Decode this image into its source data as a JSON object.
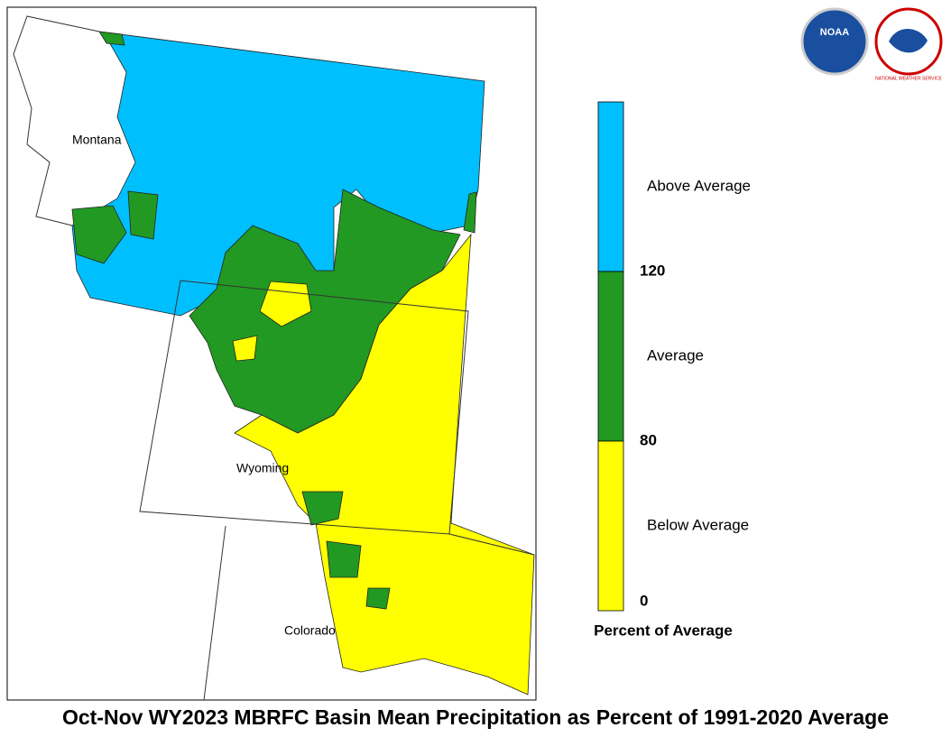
{
  "header": {
    "title": "Oct-Nov WY2023 MBRFC Basin Mean Precipitation as Percent of 1991-2020 Average"
  },
  "logos": {
    "noaa": "NOAA",
    "nws": "NATIONAL WEATHER SERVICE"
  },
  "map": {
    "states": [
      "Montana",
      "Wyoming",
      "Colorado"
    ]
  },
  "legend": {
    "title": "Percent of Average",
    "categories": [
      {
        "label": "Above Average",
        "color": "#00bfff"
      },
      {
        "label": "Average",
        "color": "#229922"
      },
      {
        "label": "Below Average",
        "color": "#ffff00"
      }
    ],
    "breaks": [
      "120",
      "80",
      "0"
    ]
  }
}
